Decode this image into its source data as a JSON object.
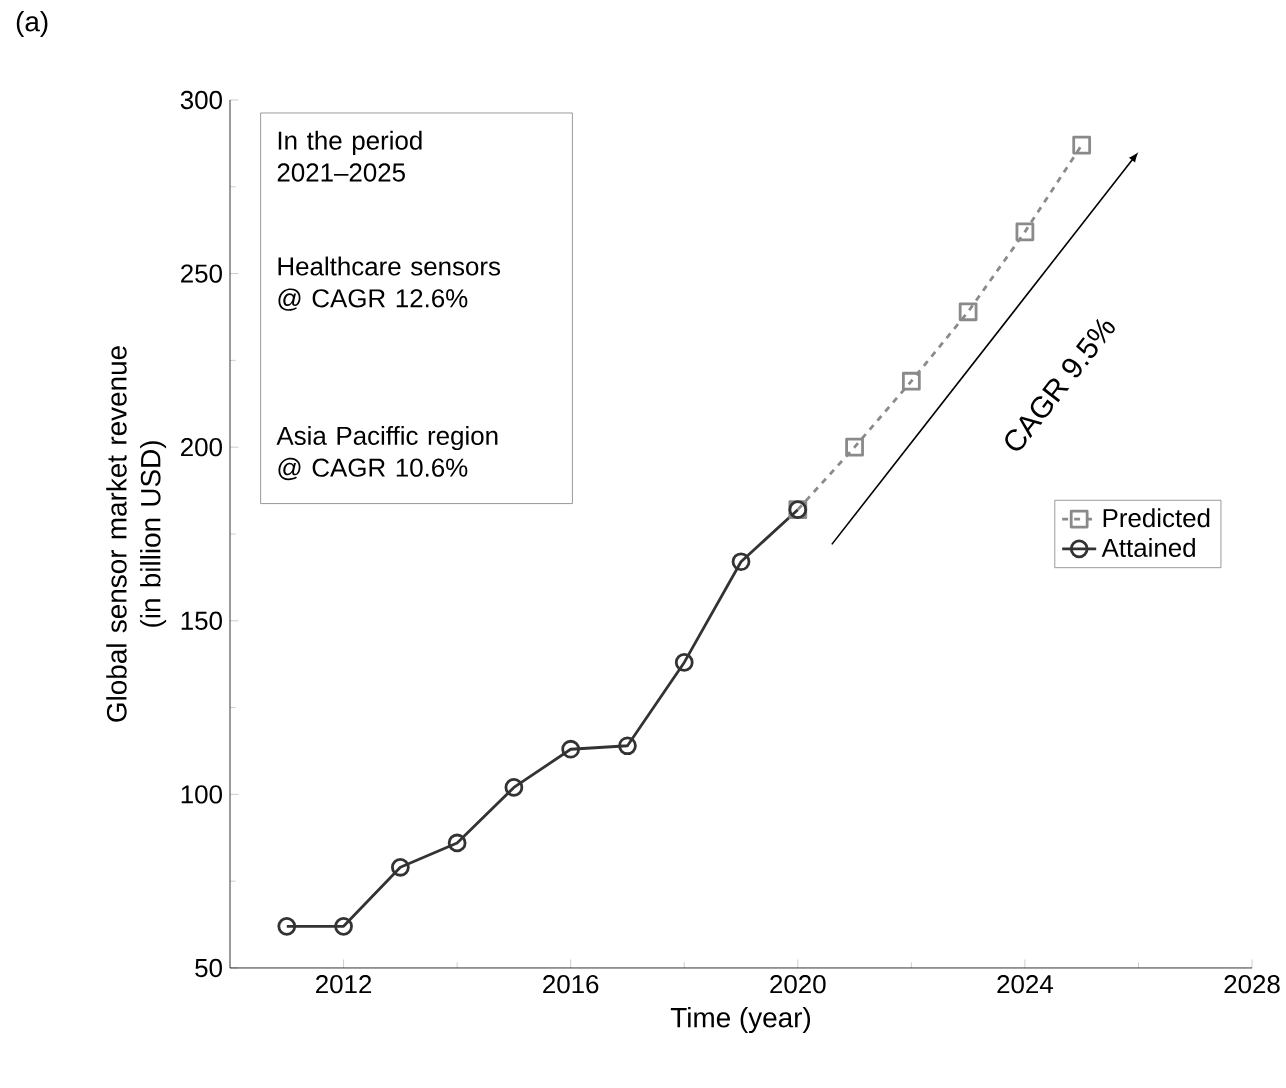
{
  "chart_data": {
    "type": "line",
    "xlabel": "Time (year)",
    "ylabel": "Global sensor market revenue\n(in billion USD)",
    "xlim": [
      2010,
      2028
    ],
    "xticks": [
      2012,
      2016,
      2020,
      2024,
      2028
    ],
    "ylim": [
      50,
      300
    ],
    "yticks": [
      50,
      100,
      150,
      200,
      250,
      300
    ],
    "grid": false,
    "legend": "right",
    "series": [
      {
        "name": "Predicted",
        "color": "#8a8a8a",
        "marker": "square",
        "line_style": "dashed",
        "x": [
          2020,
          2021,
          2022,
          2023,
          2024,
          2025
        ],
        "values": [
          182,
          200,
          219,
          239,
          262,
          287
        ]
      },
      {
        "name": "Attained",
        "color": "#333333",
        "marker": "circle",
        "line_style": "solid",
        "x": [
          2011,
          2012,
          2013,
          2014,
          2015,
          2016,
          2017,
          2018,
          2019,
          2020
        ],
        "values": [
          62,
          62,
          79,
          86,
          102,
          113,
          114,
          138,
          167,
          182
        ]
      }
    ],
    "annotations": [
      "(a)",
      "In the period\n2021–2025",
      "Healthcare sensors\n@ CAGR 12.6%",
      "Asia Paciffic region\n@ CAGR 10.6%",
      "CAGR 9.5%"
    ]
  }
}
